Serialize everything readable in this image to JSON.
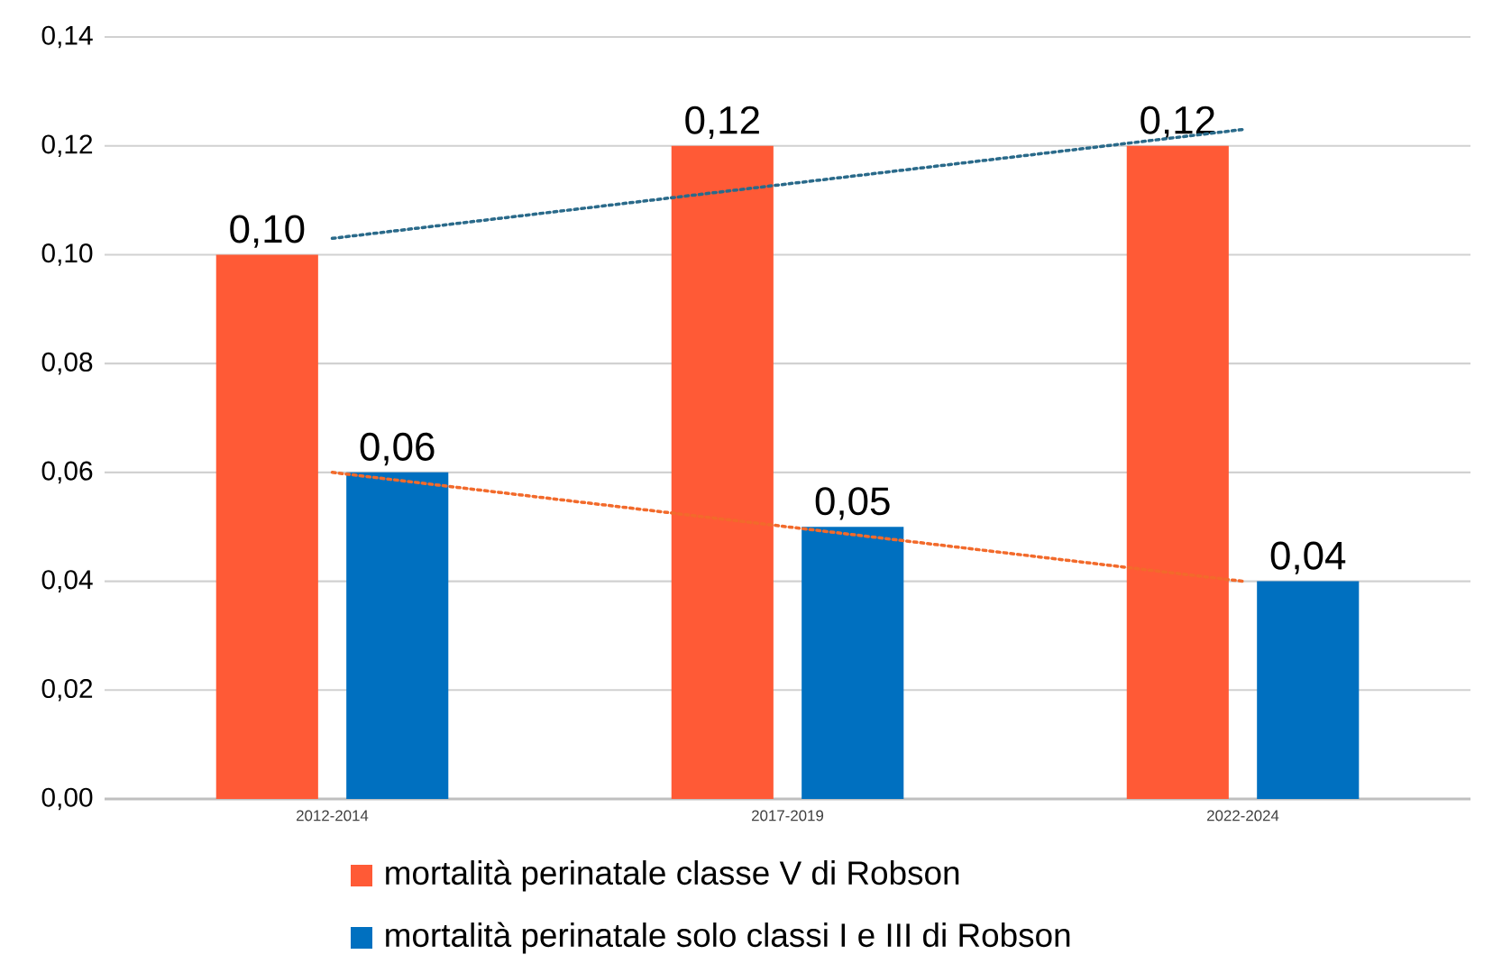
{
  "chart_data": {
    "type": "bar",
    "categories": [
      "2012-2014",
      "2017-2019",
      "2022-2024"
    ],
    "series": [
      {
        "name": "mortalità perinatale  classe V di Robson",
        "color": "#ff5a36",
        "values": [
          0.1,
          0.12,
          0.12
        ],
        "value_labels": [
          "0,10",
          "0,12",
          "0,12"
        ]
      },
      {
        "name": "mortalità perinatale  solo classi I e III di Robson",
        "color": "#0070c0",
        "values": [
          0.06,
          0.05,
          0.04
        ],
        "value_labels": [
          "0,06",
          "0,05",
          "0,04"
        ]
      },
      {
        "type": "line",
        "color": "#2a6a8a",
        "line_style": "dotted",
        "values": [
          0.103,
          0.113,
          0.123
        ]
      },
      {
        "type": "line",
        "color": "#f26a2b",
        "line_style": "dotted",
        "values": [
          0.06,
          0.05,
          0.04
        ]
      }
    ],
    "ylim": [
      0,
      0.14
    ],
    "yticks": [
      {
        "value": 0,
        "label": "0,00"
      },
      {
        "value": 0.02,
        "label": "0,02"
      },
      {
        "value": 0.04,
        "label": "0,04"
      },
      {
        "value": 0.06,
        "label": "0,06"
      },
      {
        "value": 0.08,
        "label": "0,08"
      },
      {
        "value": 0.1,
        "label": "0,10"
      },
      {
        "value": 0.12,
        "label": "0,12"
      },
      {
        "value": 0.14,
        "label": "0,14"
      }
    ],
    "grid": "y",
    "legend": "bottom"
  }
}
